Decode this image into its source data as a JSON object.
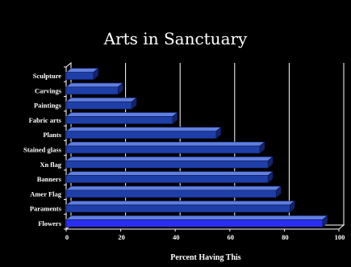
{
  "chart_data": {
    "type": "bar",
    "orientation": "horizontal",
    "title": "Arts in Sanctuary",
    "xlabel": "Percent Having This",
    "ylabel": "",
    "xlim": [
      0,
      100
    ],
    "x_ticks": [
      "0",
      "20",
      "40",
      "60",
      "80",
      "100"
    ],
    "categories": [
      "Sculpture",
      "Carvings",
      "Paintings",
      "Fabric arts",
      "Plants",
      "Stained glass",
      "Xn flag",
      "Banners",
      "Amer Flag",
      "Paraments",
      "Flowers"
    ],
    "values": [
      10,
      19,
      24,
      39,
      55,
      71,
      74,
      74,
      77,
      82,
      94
    ],
    "grid": true,
    "style_3d": true,
    "colors": {
      "background": "#000000",
      "bar": "#1f3fa8",
      "bar_top": "#5f7fe0",
      "bar_side": "#13246a",
      "highlight_bar": "#2a2ef0",
      "grid": "#ffffff"
    }
  }
}
